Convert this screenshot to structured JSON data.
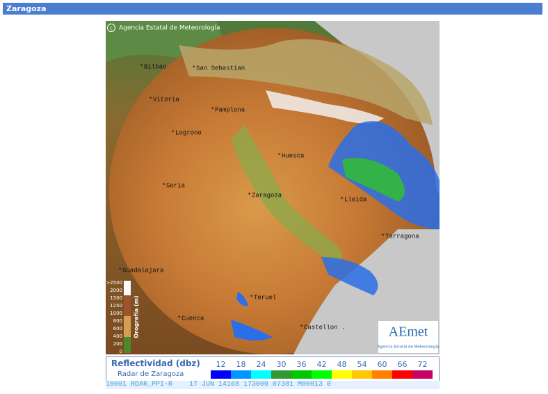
{
  "header": {
    "title": "Zaragoza"
  },
  "map": {
    "copyright": "Agencia Estatal de Meteorología",
    "cities": [
      "Bilbao",
      "San Sebastian",
      "Vitoria",
      "Pamplona",
      "Logrono",
      "Huesca",
      "Soria",
      "Zaragoza",
      "Lleida",
      "Tarragona",
      "Guadalajara",
      "Teruel",
      "Cuenca",
      "Castellon ."
    ],
    "orography": {
      "title": "Orografía (m)",
      "levels": [
        ">2500",
        "2000",
        "1500",
        "1250",
        "1000",
        "800",
        "600",
        "400",
        "200",
        "0"
      ]
    },
    "logo": {
      "name": "AEmet",
      "subtitle": "Agencia Estatal de Meteorología"
    }
  },
  "legend": {
    "title": "Reflectividad (dbz)",
    "subtitle": "Radar de Zaragoza",
    "levels": [
      {
        "value": 12,
        "color": "#0000fe"
      },
      {
        "value": 18,
        "color": "#0096ff"
      },
      {
        "value": 24,
        "color": "#00ffff"
      },
      {
        "value": 30,
        "color": "#339933"
      },
      {
        "value": 36,
        "color": "#00c800"
      },
      {
        "value": 42,
        "color": "#00ff00"
      },
      {
        "value": 48,
        "color": "#ffff00"
      },
      {
        "value": 54,
        "color": "#ffc800"
      },
      {
        "value": 60,
        "color": "#ff8000"
      },
      {
        "value": 66,
        "color": "#ff0000"
      },
      {
        "value": 72,
        "color": "#c80064"
      }
    ]
  },
  "status": "10001 RDAR_PPI-R    17 JUN 14168 173000 07381 M00013 0"
}
